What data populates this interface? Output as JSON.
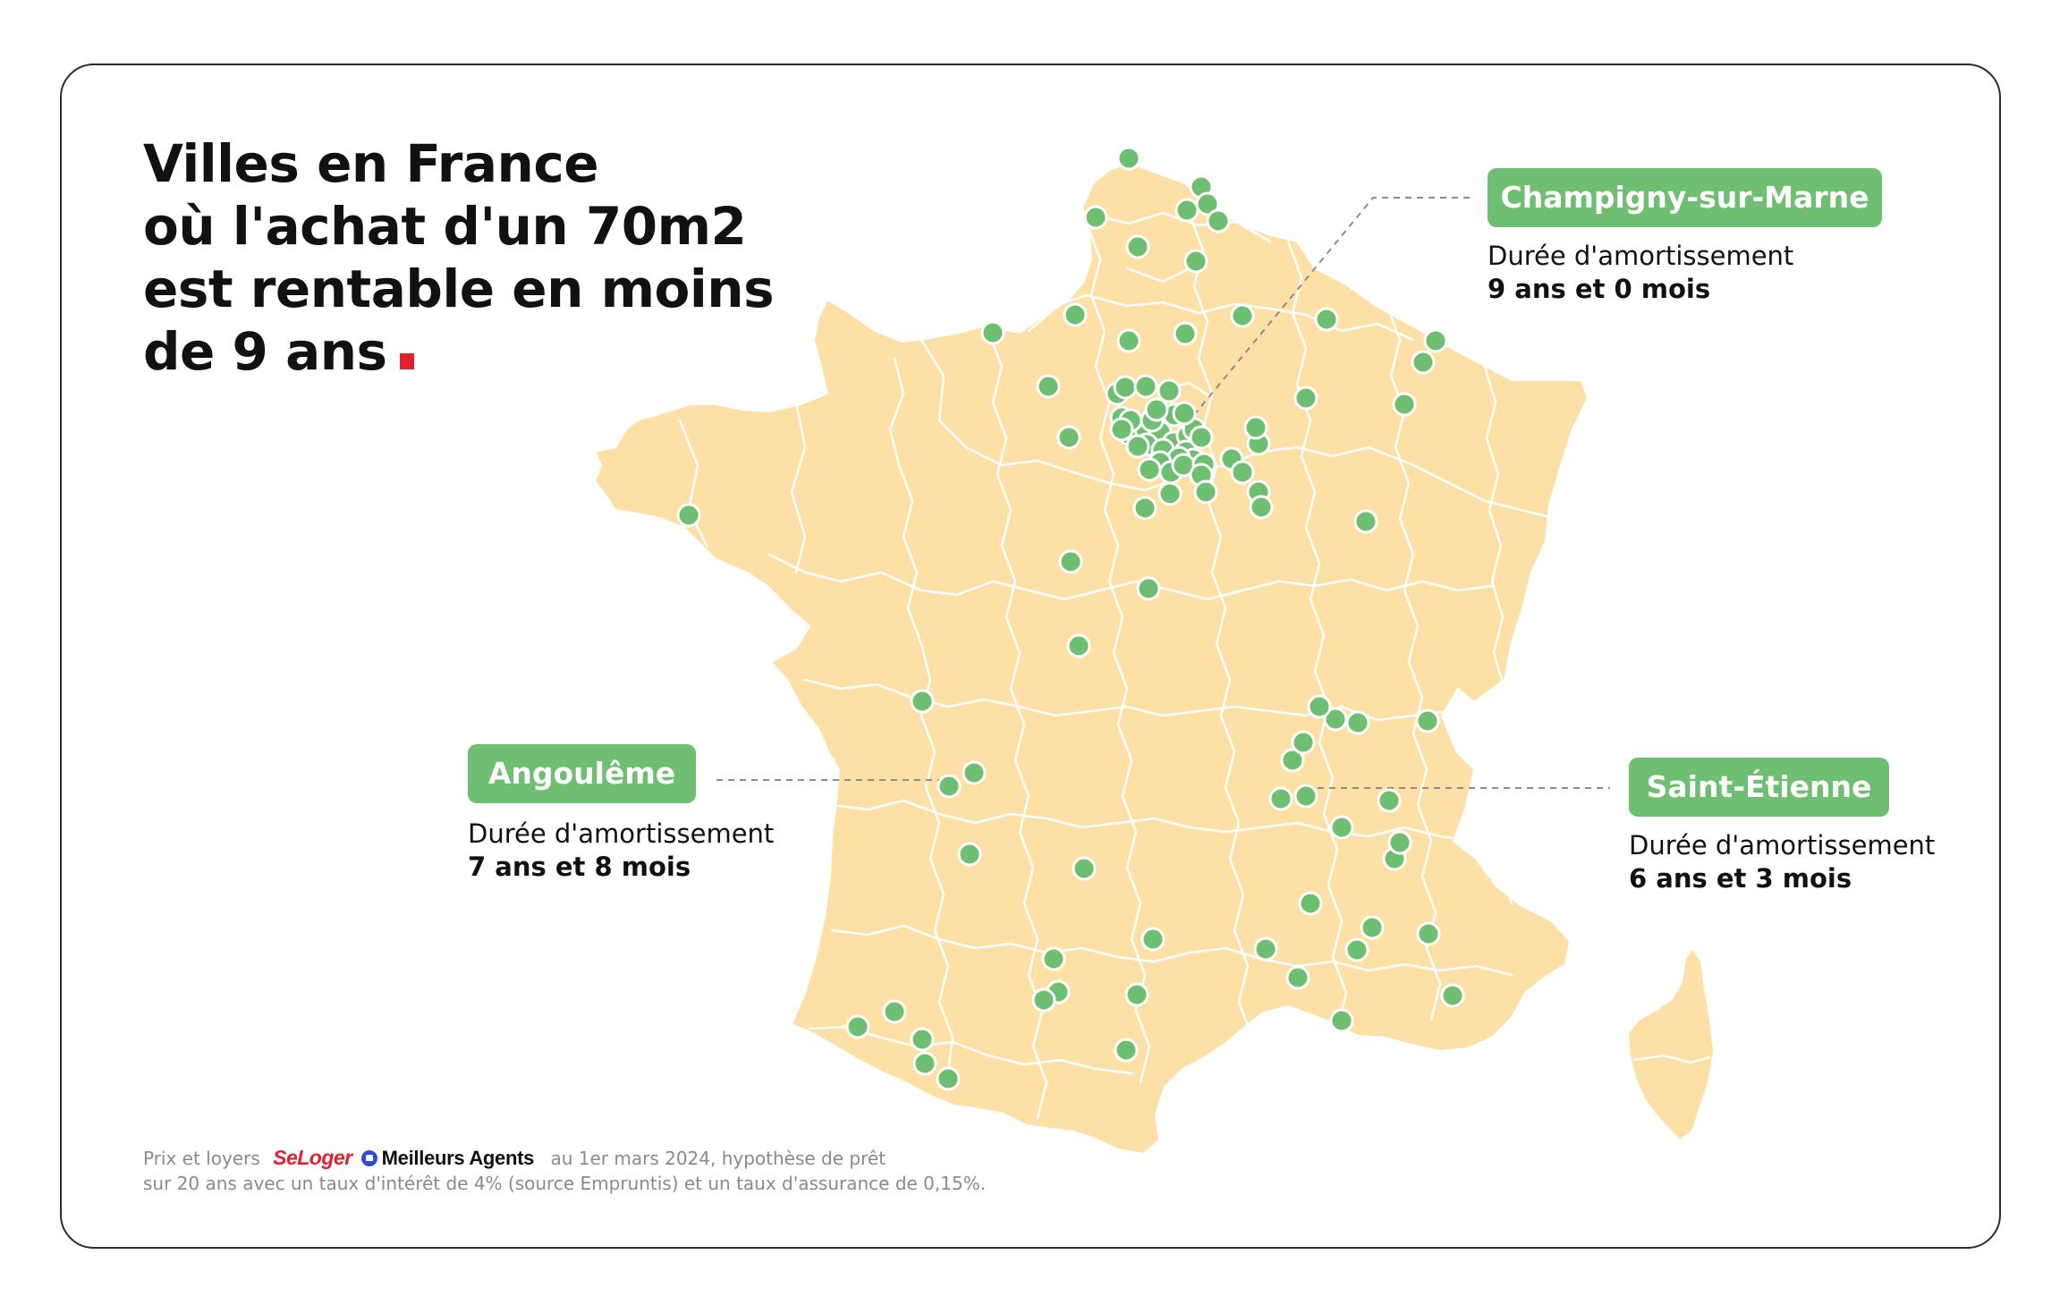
{
  "title_lines": [
    "Villes en France",
    "où l'achat d'un 70m2",
    "est rentable en moins",
    "de 9 ans"
  ],
  "colors": {
    "map_fill": "#fde0a6",
    "map_border": "#ffffff",
    "dot_fill": "#6fbf73",
    "dot_stroke": "#ffffff",
    "badge_bg": "#6fbf73",
    "accent": "#e5202e",
    "leader_line": "#8c8c8c"
  },
  "callouts": {
    "champigny": {
      "city": "Champigny-sur-Marne",
      "label": "Durée d'amortissement",
      "value": "9 ans et 0 mois"
    },
    "angouleme": {
      "city": "Angoulême",
      "label": "Durée d'amortissement",
      "value": "7 ans et 8 mois"
    },
    "saint_etienne": {
      "city": "Saint-Étienne",
      "label": "Durée d'amortissement",
      "value": "6 ans et 3 mois"
    }
  },
  "footnote": {
    "prefix": "Prix et loyers",
    "brand1": "SeLoger",
    "brand2": "Meilleurs Agents",
    "line1_suffix": "au 1er mars 2024, hypothèse de prêt",
    "line2": "sur 20 ans avec un taux d'intérêt de 4% (source Empruntis) et un taux d'assurance de 0,15%."
  }
}
